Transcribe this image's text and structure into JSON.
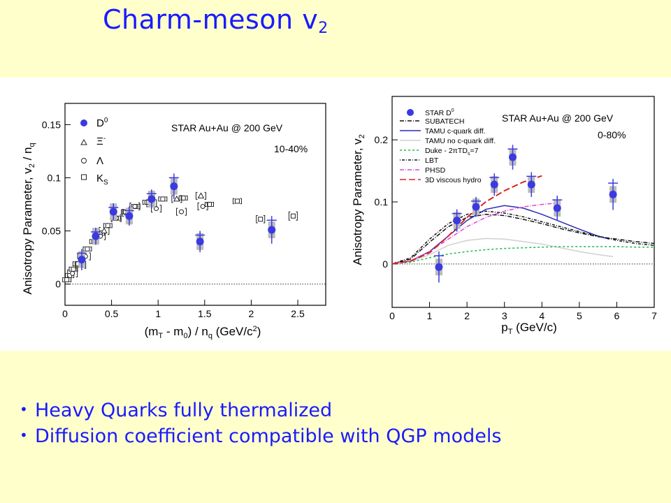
{
  "slide": {
    "title_main": "Charm-meson v",
    "title_sub": "2",
    "bullets": [
      "Heavy Quarks fully thermalized",
      "Diffusion coefficient compatible with QGP models"
    ],
    "colors": {
      "title": "#1a1aff",
      "background": "#ffffcc",
      "accent_points": "#3a3ae0"
    }
  },
  "chart_data": [
    {
      "type": "scatter",
      "title": "STAR  Au+Au @ 200 GeV",
      "annotation": "10-40%",
      "xlabel": "(m_T - m_0) / n_q (GeV/c^2)",
      "ylabel": "Anisotropy Parameter, v_2 / n_q",
      "xlim": [
        0,
        2.8
      ],
      "ylim": [
        -0.02,
        0.17
      ],
      "x_ticks": [
        "0",
        "0.5",
        "1",
        "1.5",
        "2",
        "2.5"
      ],
      "y_ticks": [
        "0",
        "0.05",
        "0.1",
        "0.15"
      ],
      "legend": [
        "D^0",
        "Ξ^-",
        "Λ",
        "K_S"
      ],
      "legend_position": "top-left",
      "zero_line": "dotted",
      "series": [
        {
          "name": "D^0",
          "x": [
            0.18,
            0.33,
            0.52,
            0.69,
            0.93,
            1.17,
            1.45,
            2.22
          ],
          "y": [
            0.023,
            0.045,
            0.068,
            0.064,
            0.08,
            0.092,
            0.04,
            0.051
          ],
          "err": [
            0.01,
            0.008,
            0.008,
            0.009,
            0.009,
            0.012,
            0.01,
            0.013
          ]
        },
        {
          "name": "Ξ^-",
          "x": [
            0.17,
            0.42,
            0.67,
            0.93,
            1.2,
            1.46
          ],
          "y": [
            0.018,
            0.05,
            0.067,
            0.076,
            0.08,
            0.083
          ],
          "err": [
            0.003,
            0.003,
            0.003,
            0.004,
            0.004,
            0.005
          ]
        },
        {
          "name": "Λ",
          "x": [
            0.08,
            0.22,
            0.38,
            0.55,
            0.75,
            0.98,
            1.25,
            1.48
          ],
          "y": [
            0.01,
            0.026,
            0.045,
            0.062,
            0.073,
            0.071,
            0.068,
            0.073
          ],
          "err": [
            0.002,
            0.002,
            0.002,
            0.003,
            0.003,
            0.004,
            0.004,
            0.005
          ]
        },
        {
          "name": "K_S",
          "x": [
            0.02,
            0.05,
            0.09,
            0.13,
            0.18,
            0.24,
            0.31,
            0.38,
            0.46,
            0.55,
            0.65,
            0.76,
            0.88,
            1.05,
            1.27,
            1.55,
            1.85,
            2.1,
            2.45
          ],
          "y": [
            0.004,
            0.008,
            0.014,
            0.019,
            0.026,
            0.033,
            0.04,
            0.048,
            0.055,
            0.062,
            0.068,
            0.073,
            0.077,
            0.08,
            0.081,
            0.075,
            0.078,
            0.061,
            0.064
          ],
          "err": [
            0.001,
            0.001,
            0.001,
            0.001,
            0.002,
            0.002,
            0.002,
            0.002,
            0.002,
            0.002,
            0.002,
            0.003,
            0.003,
            0.003,
            0.004,
            0.004,
            0.005,
            0.007,
            0.008
          ]
        }
      ]
    },
    {
      "type": "scatter",
      "title": "STAR  Au+Au @ 200 GeV",
      "annotation": "0-80%",
      "xlabel": "p_T (GeV/c)",
      "ylabel": "Anisotropy Parameter, v_2",
      "xlim": [
        0,
        7
      ],
      "ylim": [
        -0.07,
        0.27
      ],
      "x_ticks": [
        "0",
        "1",
        "2",
        "3",
        "4",
        "5",
        "6",
        "7"
      ],
      "y_ticks": [
        "0",
        "0.1",
        "0.2"
      ],
      "legend_position": "top-left",
      "zero_line": "dotted",
      "points": {
        "name": "STAR D^0",
        "x": [
          1.25,
          1.73,
          2.24,
          2.73,
          3.22,
          3.72,
          4.41,
          5.9
        ],
        "y": [
          -0.005,
          0.07,
          0.092,
          0.128,
          0.172,
          0.128,
          0.09,
          0.112
        ],
        "err": [
          0.025,
          0.018,
          0.016,
          0.018,
          0.02,
          0.02,
          0.02,
          0.025
        ]
      },
      "models": [
        {
          "name": "SUBATECH",
          "color": "#111111",
          "dash": "6,2,1,2",
          "x": [
            0,
            0.5,
            1,
            1.5,
            2,
            2.5,
            3,
            3.5,
            4,
            4.5,
            5,
            5.5,
            6,
            6.5,
            7
          ],
          "y": [
            0,
            0.008,
            0.035,
            0.06,
            0.075,
            0.08,
            0.078,
            0.072,
            0.065,
            0.057,
            0.05,
            0.044,
            0.04,
            0.036,
            0.033
          ]
        },
        {
          "name": "TAMU c-quark diff.",
          "color": "#2a2ab8",
          "dash": "",
          "x": [
            0,
            0.5,
            1,
            1.5,
            2,
            2.5,
            3,
            3.5,
            4,
            4.5,
            5,
            5.5,
            5.8
          ],
          "y": [
            0,
            0.005,
            0.02,
            0.045,
            0.07,
            0.088,
            0.094,
            0.09,
            0.08,
            0.068,
            0.056,
            0.045,
            0.04
          ]
        },
        {
          "name": "TAMU no c-quark diff.",
          "color": "#d0d0d0",
          "dash": "",
          "x": [
            0,
            0.5,
            1,
            1.5,
            2,
            2.5,
            3,
            3.5,
            4,
            4.5,
            5,
            5.5,
            5.9
          ],
          "y": [
            0,
            0.004,
            0.015,
            0.03,
            0.038,
            0.041,
            0.04,
            0.036,
            0.032,
            0.026,
            0.02,
            0.015,
            0.012
          ]
        },
        {
          "name": "Duke - 2πTD_s=7",
          "color": "#22bb44",
          "dash": "3,3",
          "x": [
            0,
            0.5,
            1,
            1.5,
            2,
            2.5,
            3,
            3.5,
            4,
            4.5,
            5,
            5.5,
            6,
            6.5,
            7
          ],
          "y": [
            0,
            0.003,
            0.01,
            0.016,
            0.02,
            0.023,
            0.025,
            0.026,
            0.027,
            0.028,
            0.028,
            0.028,
            0.028,
            0.027,
            0.027
          ]
        },
        {
          "name": "LBT",
          "color": "#111111",
          "dash": "1,2,4,2",
          "x": [
            0,
            0.5,
            1,
            1.5,
            2,
            2.5,
            3,
            3.5,
            4,
            4.5,
            5,
            5.5,
            6,
            6.5,
            7
          ],
          "y": [
            0,
            0.01,
            0.04,
            0.065,
            0.08,
            0.085,
            0.082,
            0.076,
            0.068,
            0.06,
            0.052,
            0.045,
            0.038,
            0.033,
            0.03
          ]
        },
        {
          "name": "PHSD",
          "color": "#dd44dd",
          "dash": "6,2,1,2",
          "x": [
            0,
            0.5,
            1,
            1.5,
            2,
            2.5,
            3,
            3.5,
            4,
            4.4
          ],
          "y": [
            0,
            0.005,
            0.02,
            0.04,
            0.06,
            0.075,
            0.085,
            0.092,
            0.096,
            0.098
          ]
        },
        {
          "name": "3D viscous hydro",
          "color": "#dd2222",
          "dash": "9,4",
          "x": [
            0,
            0.5,
            1,
            1.5,
            2,
            2.5,
            3,
            3.5,
            4
          ],
          "y": [
            0,
            0.005,
            0.018,
            0.045,
            0.075,
            0.1,
            0.118,
            0.132,
            0.142
          ]
        }
      ]
    }
  ]
}
